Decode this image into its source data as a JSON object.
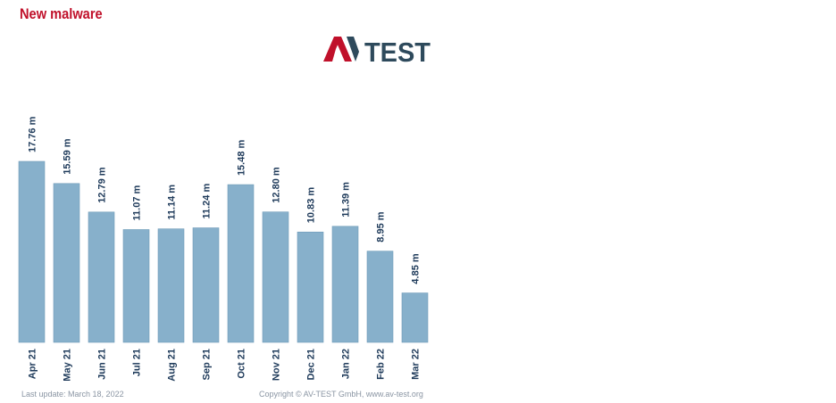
{
  "title": "New malware",
  "logo": {
    "part1": "AV",
    "part2": "TEST"
  },
  "colors": {
    "title": "#c0102a",
    "bar": "#87b0cb",
    "bar_edge": "#6f9bb8",
    "label": "#1e3a5a",
    "logo_red": "#c0102a",
    "logo_dark": "#2e4a5c"
  },
  "footer": {
    "last_update": "Last update: March 18, 2022",
    "copyright": "Copyright © AV-TEST GmbH, www.av-test.org"
  },
  "chart_data": {
    "type": "bar",
    "categories": [
      "Apr 21",
      "May 21",
      "Jun 21",
      "Jul 21",
      "Aug 21",
      "Sep 21",
      "Oct 21",
      "Nov 21",
      "Dec 21",
      "Jan 22",
      "Feb 22",
      "Mar 22"
    ],
    "values": [
      17.76,
      15.59,
      12.79,
      11.07,
      11.14,
      11.24,
      15.48,
      12.8,
      10.83,
      11.39,
      8.95,
      4.85
    ],
    "value_labels": [
      "17.76 m",
      "15.59 m",
      "12.79 m",
      "11.07 m",
      "11.14 m",
      "11.24 m",
      "15.48 m",
      "12.80 m",
      "10.83 m",
      "11.39 m",
      "8.95 m",
      "4.85 m"
    ],
    "unit": "m",
    "ylim": [
      0,
      17.76
    ],
    "grid": false,
    "legend": "none"
  }
}
